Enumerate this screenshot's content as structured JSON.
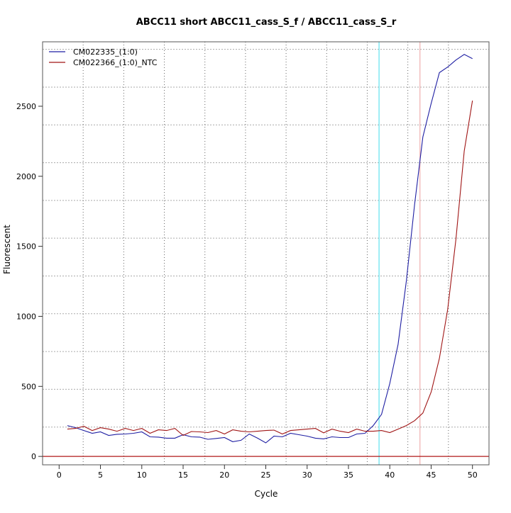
{
  "chart_data": {
    "type": "line",
    "title": "ABCC11 short ABCC11_cass_S_f / ABCC11_cass_S_r",
    "xlabel": "Cycle",
    "ylabel": "Fluorescent",
    "xlim": [
      -2,
      52
    ],
    "ylim": [
      -60,
      2960
    ],
    "x_ticks": [
      0,
      5,
      10,
      15,
      20,
      25,
      30,
      35,
      40,
      45,
      50
    ],
    "y_ticks": [
      0,
      500,
      1000,
      1500,
      2000,
      2500
    ],
    "grid": true,
    "legend_position": "top-left",
    "x": [
      1,
      2,
      3,
      4,
      5,
      6,
      7,
      8,
      9,
      10,
      11,
      12,
      13,
      14,
      15,
      16,
      17,
      18,
      19,
      20,
      21,
      22,
      23,
      24,
      25,
      26,
      27,
      28,
      29,
      30,
      31,
      32,
      33,
      34,
      35,
      36,
      37,
      38,
      39,
      40,
      41,
      42,
      43,
      44,
      45,
      46,
      47,
      48,
      49,
      50
    ],
    "series": [
      {
        "name": "CM022335_(1:0)",
        "color": "#1f1fa3",
        "values": [
          220,
          205,
          185,
          165,
          175,
          150,
          158,
          160,
          165,
          175,
          140,
          138,
          130,
          130,
          155,
          140,
          138,
          122,
          128,
          135,
          105,
          115,
          160,
          130,
          97,
          145,
          140,
          165,
          155,
          145,
          130,
          125,
          140,
          135,
          135,
          160,
          165,
          220,
          300,
          520,
          800,
          1250,
          1800,
          2280,
          2520,
          2740,
          2780,
          2830,
          2870,
          2840
        ]
      },
      {
        "name": "CM022366_(1:0)_NTC",
        "color": "#a01515",
        "values": [
          195,
          200,
          215,
          185,
          205,
          195,
          180,
          200,
          185,
          200,
          165,
          190,
          185,
          200,
          150,
          178,
          175,
          170,
          185,
          160,
          190,
          180,
          175,
          180,
          185,
          188,
          160,
          185,
          190,
          195,
          200,
          168,
          195,
          180,
          170,
          195,
          180,
          180,
          185,
          170,
          195,
          220,
          255,
          310,
          460,
          700,
          1050,
          1550,
          2180,
          2540
        ]
      }
    ],
    "vertical_markers": [
      {
        "x": 38.7,
        "color": "#5fe3ef"
      },
      {
        "x": 43.65,
        "color": "#f0b0b0"
      }
    ],
    "threshold": {
      "y": 0,
      "color": "#b01818"
    }
  }
}
